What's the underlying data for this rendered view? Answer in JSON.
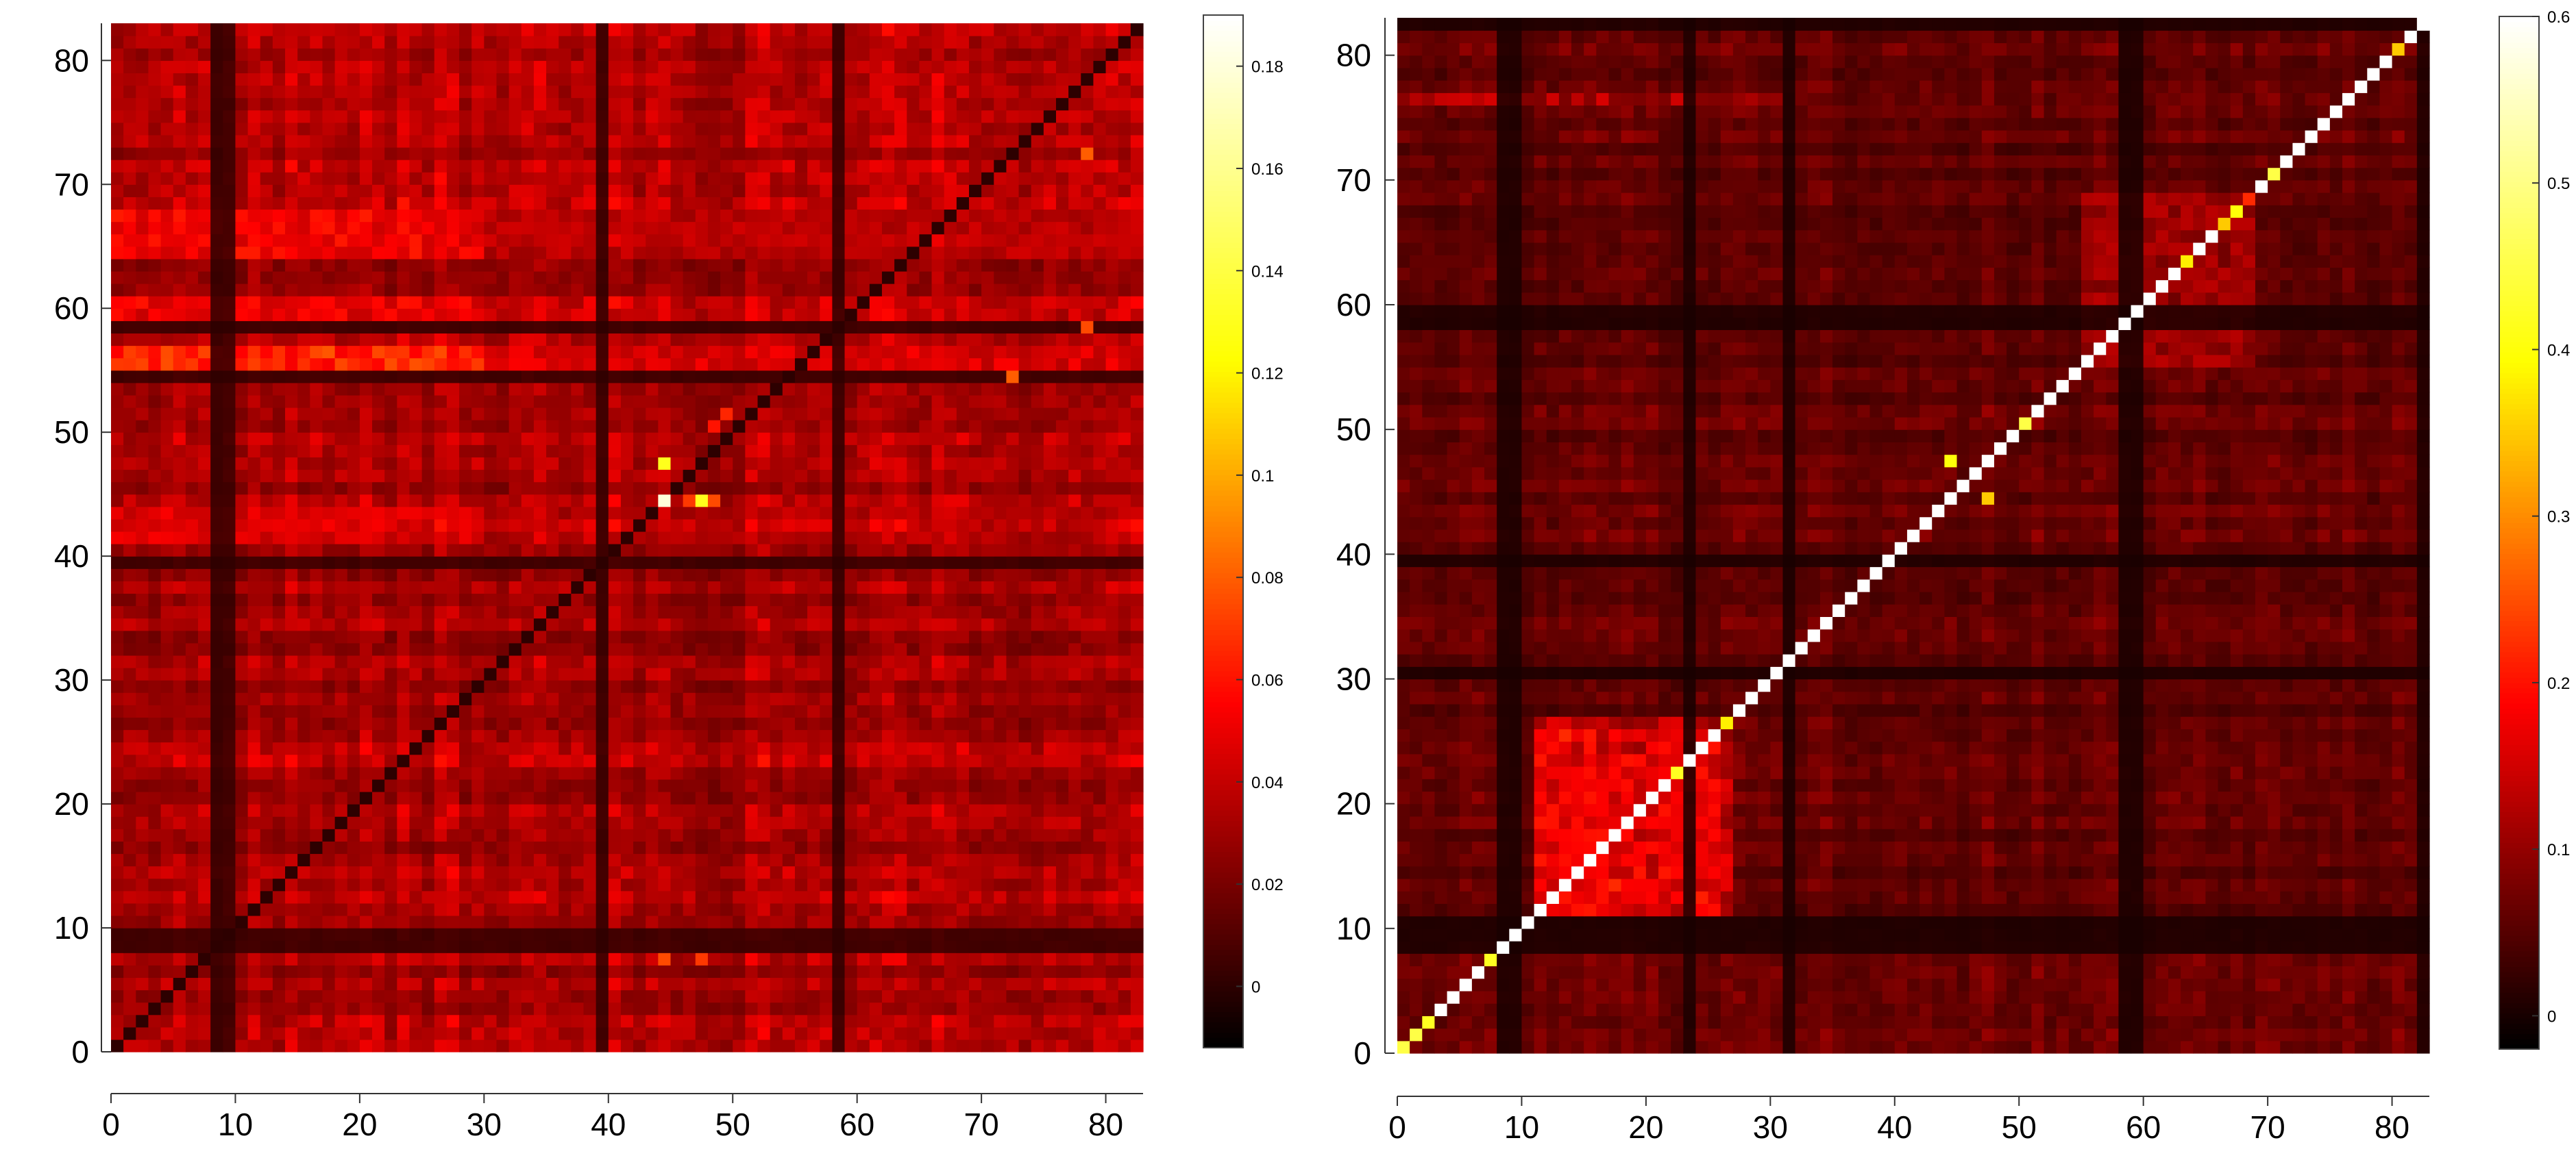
{
  "chart_data": [
    {
      "type": "heatmap",
      "title": "",
      "xlabel": "",
      "ylabel": "",
      "grid_size": 83,
      "xlim": [
        0,
        83
      ],
      "ylim": [
        0,
        83
      ],
      "x_ticks": [
        "0",
        "10",
        "20",
        "30",
        "40",
        "50",
        "60",
        "70",
        "80"
      ],
      "y_ticks": [
        "0",
        "10",
        "20",
        "30",
        "40",
        "50",
        "60",
        "70",
        "80"
      ],
      "colormap": "hot",
      "colormap_stops": [
        "#000000",
        "#ff0000",
        "#ffff00",
        "#ffffff"
      ],
      "colorbar": {
        "range": [
          -0.012,
          0.19
        ],
        "ticks": [
          "0",
          "0.02",
          "0.04",
          "0.06",
          "0.08",
          "0.1",
          "0.12",
          "0.14",
          "0.16",
          "0.18"
        ]
      },
      "base_level": 0.033,
      "diagonal_value": 0.0,
      "dark_rows": [
        8,
        9,
        39,
        54,
        58
      ],
      "dark_cols": [
        8,
        9,
        39,
        58
      ],
      "bright_row_bands": [
        {
          "rows": [
            55,
            56
          ],
          "value": 0.065
        },
        {
          "rows": [
            64,
            65,
            66,
            67
          ],
          "value": 0.052
        },
        {
          "rows": [
            59,
            60
          ],
          "value": 0.05
        },
        {
          "rows": [
            41,
            42,
            43
          ],
          "value": 0.045
        }
      ],
      "hotspots": [
        {
          "x": 44,
          "y": 44,
          "value": 0.18
        },
        {
          "x": 44,
          "y": 47,
          "value": 0.13
        },
        {
          "x": 47,
          "y": 44,
          "value": 0.13
        },
        {
          "x": 48,
          "y": 44,
          "value": 0.075
        },
        {
          "x": 46,
          "y": 44,
          "value": 0.07
        },
        {
          "x": 44,
          "y": 7,
          "value": 0.075
        },
        {
          "x": 47,
          "y": 7,
          "value": 0.07
        },
        {
          "x": 72,
          "y": 54,
          "value": 0.08
        },
        {
          "x": 78,
          "y": 72,
          "value": 0.08
        },
        {
          "x": 78,
          "y": 58,
          "value": 0.075
        },
        {
          "x": 49,
          "y": 51,
          "value": 0.065
        },
        {
          "x": 48,
          "y": 50,
          "value": 0.06
        }
      ]
    },
    {
      "type": "heatmap",
      "title": "",
      "xlabel": "",
      "ylabel": "",
      "grid_size": 83,
      "xlim": [
        0,
        83
      ],
      "ylim": [
        0,
        83
      ],
      "x_ticks": [
        "0",
        "10",
        "20",
        "30",
        "40",
        "50",
        "60",
        "70",
        "80"
      ],
      "y_ticks": [
        "0",
        "10",
        "20",
        "30",
        "40",
        "50",
        "60",
        "70",
        "80"
      ],
      "colormap": "hot",
      "colormap_stops": [
        "#000000",
        "#ff0000",
        "#ffff00",
        "#ffffff"
      ],
      "colorbar": {
        "range": [
          -0.02,
          0.6
        ],
        "ticks": [
          "0",
          "0.1",
          "0.2",
          "0.3",
          "0.4",
          "0.5",
          "0.6"
        ]
      },
      "base_level": 0.06,
      "diagonal_value": 0.6,
      "diagonal_overrides": [
        {
          "index": 0,
          "value": 0.45
        },
        {
          "index": 1,
          "value": 0.45
        },
        {
          "index": 2,
          "value": 0.42
        },
        {
          "index": 7,
          "value": 0.42
        },
        {
          "index": 22,
          "value": 0.42
        },
        {
          "index": 26,
          "value": 0.38
        },
        {
          "index": 50,
          "value": 0.45
        },
        {
          "index": 63,
          "value": 0.38
        },
        {
          "index": 66,
          "value": 0.35
        },
        {
          "index": 67,
          "value": 0.4
        },
        {
          "index": 68,
          "value": 0.22
        },
        {
          "index": 70,
          "value": 0.45
        },
        {
          "index": 80,
          "value": 0.35
        }
      ],
      "dark_rows": [
        8,
        9,
        10,
        30,
        39,
        58,
        59,
        82
      ],
      "dark_cols": [
        8,
        9,
        23,
        31,
        58,
        59,
        82
      ],
      "blocks": [
        {
          "x": [
            11,
            22
          ],
          "y": [
            11,
            25
          ],
          "value": 0.17
        },
        {
          "x": [
            22,
            26
          ],
          "y": [
            11,
            25
          ],
          "value": 0.15
        },
        {
          "x": [
            55,
            68
          ],
          "y": [
            55,
            68
          ],
          "value": 0.11
        },
        {
          "x": [
            0,
            30
          ],
          "y": [
            76,
            76
          ],
          "value": 0.13
        }
      ],
      "hotspots": [
        {
          "x": 44,
          "y": 47,
          "value": 0.4
        },
        {
          "x": 47,
          "y": 44,
          "value": 0.35
        },
        {
          "x": 13,
          "y": 25,
          "value": 0.22
        },
        {
          "x": 17,
          "y": 13,
          "value": 0.22
        },
        {
          "x": 24,
          "y": 12,
          "value": 0.21
        },
        {
          "x": 25,
          "y": 24,
          "value": 0.2
        },
        {
          "x": 12,
          "y": 19,
          "value": 0.2
        }
      ]
    }
  ]
}
